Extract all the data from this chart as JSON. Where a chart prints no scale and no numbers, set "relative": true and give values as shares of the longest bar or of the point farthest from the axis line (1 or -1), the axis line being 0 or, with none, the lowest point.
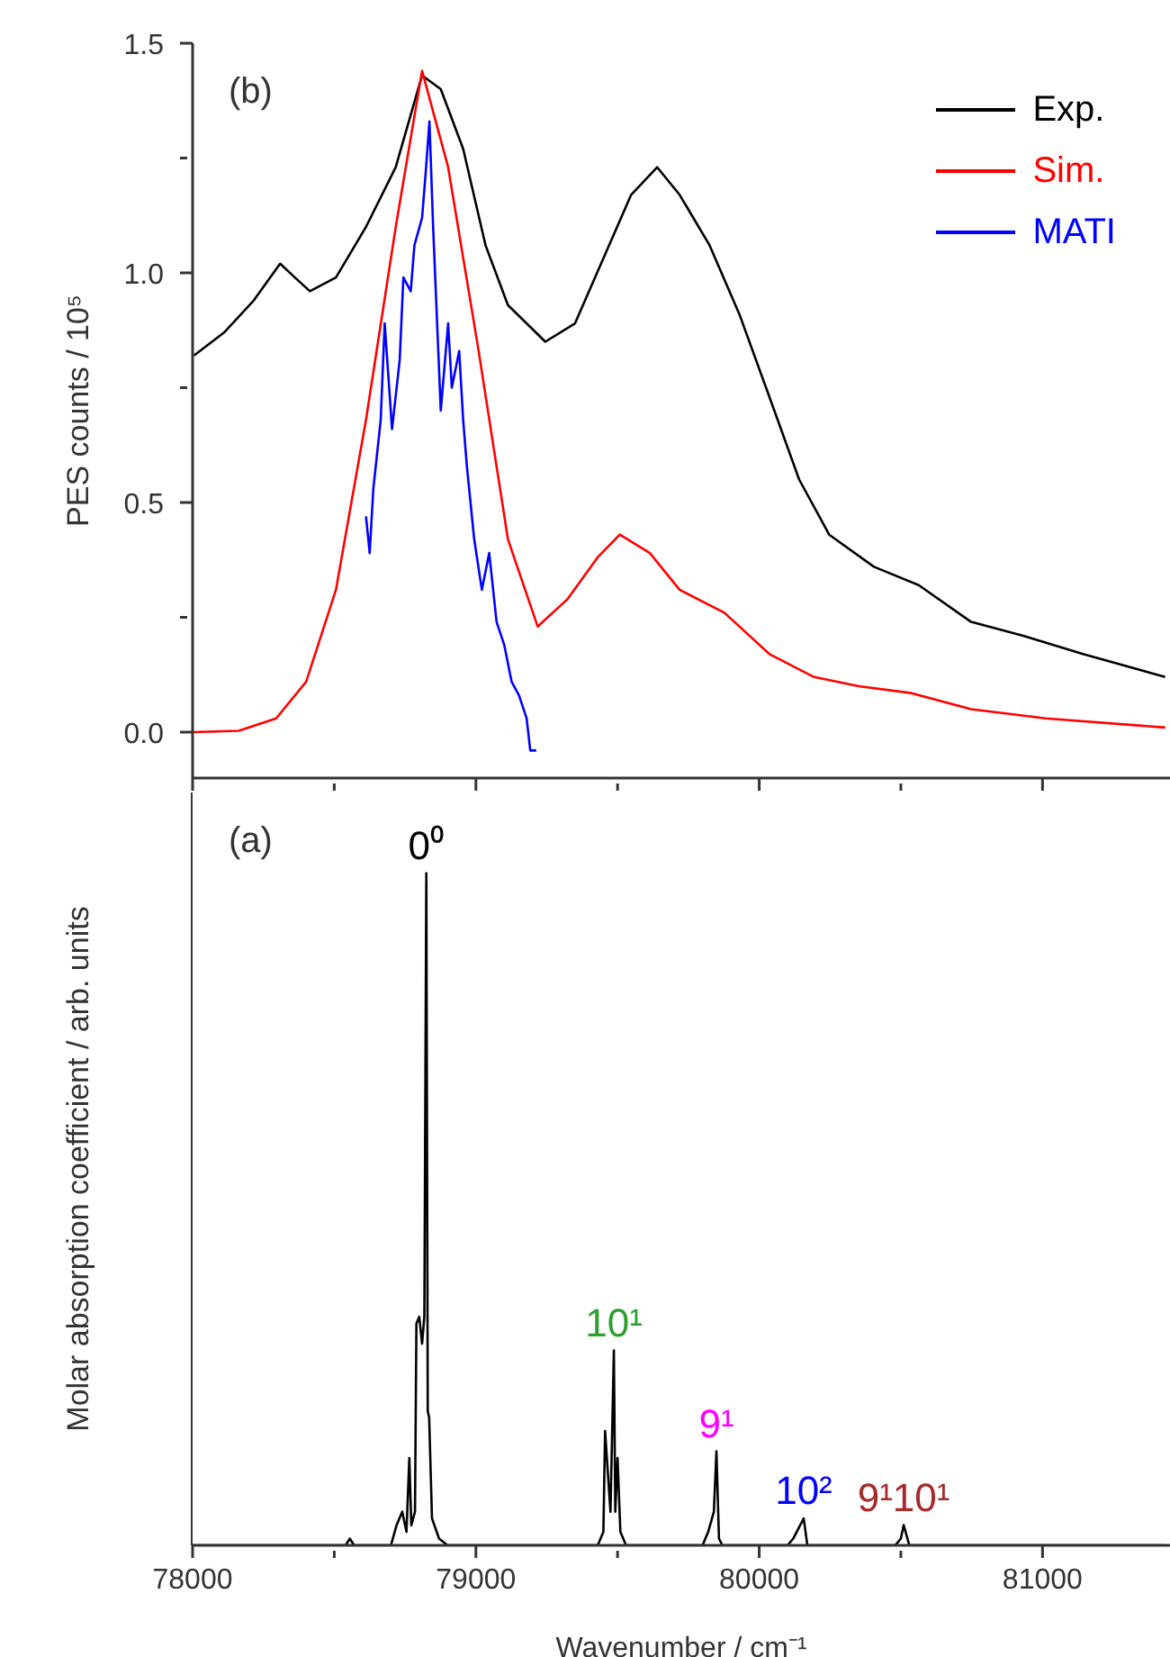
{
  "chart_data": [
    {
      "type": "line",
      "ylabel": "PES counts / 10⁵",
      "annotations": [
        "(b)"
      ],
      "xlim": [
        78000,
        81450
      ],
      "xticks": [
        78000,
        {
          "value": 78500,
          "label": null
        },
        79000,
        {
          "value": 79500,
          "label": null
        },
        80000,
        {
          "value": 80500,
          "label": null
        },
        81000
      ],
      "ylim": [
        -0.1,
        1.5
      ],
      "yticks": [
        {
          "value": 0,
          "label": "0.0"
        },
        {
          "value": 0.25,
          "label": null
        },
        0.5,
        {
          "value": 0.75,
          "label": null
        },
        {
          "value": 1,
          "label": "1.0"
        },
        {
          "value": 1.25,
          "label": null
        },
        1.5
      ],
      "legend": "top right",
      "tick_labels": "y",
      "series": [
        {
          "name": "Exp.",
          "color": "#000000",
          "x": [
            78005,
            78111,
            78216,
            78309,
            78361,
            78414,
            78506,
            78612,
            78717,
            78810,
            78876,
            78955,
            79034,
            79113,
            79245,
            79350,
            79456,
            79548,
            79640,
            79719,
            79825,
            79930,
            80036,
            80141,
            80247,
            80405,
            80563,
            80748,
            80932,
            81143,
            81433
          ],
          "values": [
            0.82,
            0.87,
            0.94,
            1.02,
            0.99,
            0.96,
            0.99,
            1.1,
            1.23,
            1.43,
            1.4,
            1.27,
            1.06,
            0.93,
            0.85,
            0.89,
            1.04,
            1.17,
            1.23,
            1.17,
            1.06,
            0.91,
            0.73,
            0.55,
            0.43,
            0.36,
            0.32,
            0.24,
            0.21,
            0.17,
            0.12
          ]
        },
        {
          "name": "Sim.",
          "color": "#ff0000",
          "x": [
            78000,
            78163,
            78295,
            78401,
            78506,
            78612,
            78717,
            78810,
            78902,
            79007,
            79113,
            79218,
            79324,
            79429,
            79508,
            79614,
            79719,
            79877,
            80036,
            80194,
            80352,
            80537,
            80748,
            81012,
            81433
          ],
          "values": [
            0,
            0.003,
            0.03,
            0.11,
            0.31,
            0.68,
            1.1,
            1.44,
            1.23,
            0.84,
            0.42,
            0.23,
            0.29,
            0.38,
            0.43,
            0.39,
            0.31,
            0.26,
            0.17,
            0.12,
            0.1,
            0.085,
            0.05,
            0.03,
            0.01
          ]
        },
        {
          "name": "MATI",
          "color": "#0000ff",
          "x": [
            78612,
            78625,
            78638,
            78664,
            78678,
            78704,
            78731,
            78744,
            78770,
            78783,
            78810,
            78823,
            78836,
            78849,
            78876,
            78902,
            78915,
            78941,
            78955,
            78968,
            78994,
            79021,
            79047,
            79073,
            79100,
            79126,
            79152,
            79179,
            79192,
            79213
          ],
          "values": [
            0.47,
            0.39,
            0.53,
            0.68,
            0.89,
            0.66,
            0.81,
            0.99,
            0.96,
            1.06,
            1.12,
            1.22,
            1.33,
            1.1,
            0.7,
            0.89,
            0.75,
            0.83,
            0.68,
            0.58,
            0.42,
            0.31,
            0.39,
            0.24,
            0.19,
            0.11,
            0.08,
            0.03,
            -0.04,
            -0.04
          ]
        }
      ]
    },
    {
      "type": "line",
      "xlabel": "Wavenumber / cm⁻¹",
      "ylabel": "Molar absorption coefficient / arb. units",
      "annotations": [
        "(a)",
        {
          "text": "0⁰",
          "x": 78825,
          "y": 1.0
        },
        {
          "text": "10¹",
          "x": 79487,
          "y": 0.29
        },
        {
          "text": "9¹",
          "x": 79849,
          "y": 0.14
        },
        {
          "text": "10²",
          "x": 80157,
          "y": 0.04
        },
        {
          "text": "9¹10¹",
          "x": 80510,
          "y": 0.03
        }
      ],
      "xlim": [
        78000,
        81450
      ],
      "xticks": [
        78000,
        {
          "value": 78500,
          "label": null
        },
        79000,
        {
          "value": 79500,
          "label": null
        },
        80000,
        {
          "value": 80500,
          "label": null
        },
        81000
      ],
      "relative": true,
      "tick_labels": "x",
      "series": [
        {
          "color": "#000000",
          "x": [
            78000,
            78540,
            78555,
            78570,
            78700,
            78720,
            78740,
            78755,
            78765,
            78772,
            78785,
            78790,
            78800,
            78810,
            78818,
            78825,
            78830,
            78835,
            78845,
            78870,
            78900,
            79430,
            79450,
            79456,
            79475,
            79487,
            79492,
            79500,
            79510,
            79530,
            79800,
            79820,
            79840,
            79849,
            79858,
            79870,
            80100,
            80120,
            80157,
            80170,
            80480,
            80500,
            80510,
            80530,
            81433
          ],
          "values": [
            0,
            0,
            0.01,
            0,
            0,
            0.03,
            0.05,
            0.02,
            0.13,
            0.03,
            0.05,
            0.33,
            0.34,
            0.3,
            0.34,
            1,
            0.2,
            0.19,
            0.04,
            0.01,
            0,
            0,
            0.02,
            0.17,
            0.05,
            0.29,
            0.05,
            0.13,
            0.02,
            0,
            0,
            0.02,
            0.05,
            0.14,
            0.01,
            0,
            0,
            0.01,
            0.04,
            0,
            0,
            0.01,
            0.03,
            0,
            0
          ]
        }
      ]
    }
  ]
}
